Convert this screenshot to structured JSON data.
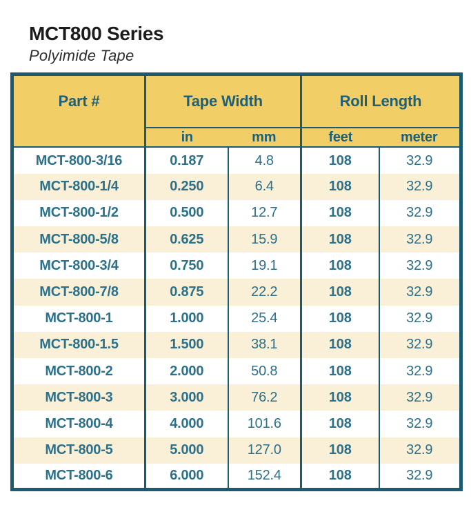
{
  "header": {
    "title": "MCT800 Series",
    "subtitle": "Polyimide Tape"
  },
  "table": {
    "headers": {
      "part": "Part #",
      "tape_width": "Tape Width",
      "roll_length": "Roll Length",
      "in": "in",
      "mm": "mm",
      "feet": "feet",
      "meter": "meter"
    },
    "rows": [
      {
        "part": "MCT-800-3/16",
        "in": "0.187",
        "mm": "4.8",
        "feet": "108",
        "meter": "32.9"
      },
      {
        "part": "MCT-800-1/4",
        "in": "0.250",
        "mm": "6.4",
        "feet": "108",
        "meter": "32.9"
      },
      {
        "part": "MCT-800-1/2",
        "in": "0.500",
        "mm": "12.7",
        "feet": "108",
        "meter": "32.9"
      },
      {
        "part": "MCT-800-5/8",
        "in": "0.625",
        "mm": "15.9",
        "feet": "108",
        "meter": "32.9"
      },
      {
        "part": "MCT-800-3/4",
        "in": "0.750",
        "mm": "19.1",
        "feet": "108",
        "meter": "32.9"
      },
      {
        "part": "MCT-800-7/8",
        "in": "0.875",
        "mm": "22.2",
        "feet": "108",
        "meter": "32.9"
      },
      {
        "part": "MCT-800-1",
        "in": "1.000",
        "mm": "25.4",
        "feet": "108",
        "meter": "32.9"
      },
      {
        "part": "MCT-800-1.5",
        "in": "1.500",
        "mm": "38.1",
        "feet": "108",
        "meter": "32.9"
      },
      {
        "part": "MCT-800-2",
        "in": "2.000",
        "mm": "50.8",
        "feet": "108",
        "meter": "32.9"
      },
      {
        "part": "MCT-800-3",
        "in": "3.000",
        "mm": "76.2",
        "feet": "108",
        "meter": "32.9"
      },
      {
        "part": "MCT-800-4",
        "in": "4.000",
        "mm": "101.6",
        "feet": "108",
        "meter": "32.9"
      },
      {
        "part": "MCT-800-5",
        "in": "5.000",
        "mm": "127.0",
        "feet": "108",
        "meter": "32.9"
      },
      {
        "part": "MCT-800-6",
        "in": "6.000",
        "mm": "152.4",
        "feet": "108",
        "meter": "32.9"
      }
    ]
  },
  "colors": {
    "border": "#1b5a70",
    "header_bg": "#f2ce67",
    "header_text": "#1d607a",
    "cell_text": "#2c7089",
    "row_alt_bg": "#faf0d8"
  }
}
